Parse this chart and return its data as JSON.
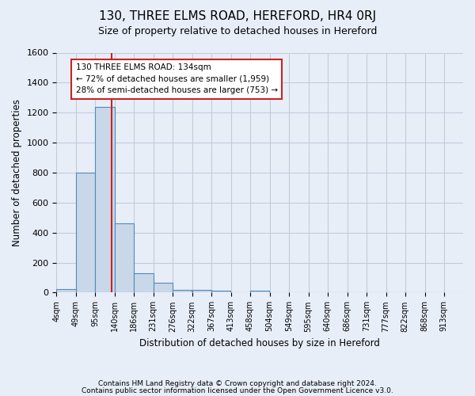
{
  "title": "130, THREE ELMS ROAD, HEREFORD, HR4 0RJ",
  "subtitle": "Size of property relative to detached houses in Hereford",
  "xlabel": "Distribution of detached houses by size in Hereford",
  "ylabel": "Number of detached properties",
  "footnote1": "Contains HM Land Registry data © Crown copyright and database right 2024.",
  "footnote2": "Contains public sector information licensed under the Open Government Licence v3.0.",
  "bar_edges": [
    4,
    49,
    95,
    140,
    186,
    231,
    276,
    322,
    367,
    413,
    458,
    504,
    549,
    595,
    640,
    686,
    731,
    777,
    822,
    868,
    913
  ],
  "bar_heights": [
    25,
    800,
    1240,
    460,
    130,
    65,
    20,
    20,
    15,
    0,
    15,
    0,
    0,
    0,
    0,
    0,
    0,
    0,
    0,
    0
  ],
  "bar_color": "#c8d8e8",
  "bar_edge_color": "#5588bb",
  "grid_color": "#c0ccdd",
  "background_color": "#e8eef8",
  "vline_x": 134,
  "vline_color": "#cc2222",
  "ylim": [
    0,
    1600
  ],
  "annotation_text": "130 THREE ELMS ROAD: 134sqm\n← 72% of detached houses are smaller (1,959)\n28% of semi-detached houses are larger (753) →",
  "annotation_box_color": "white",
  "annotation_box_edge": "#cc2222",
  "tick_labels": [
    "4sqm",
    "49sqm",
    "95sqm",
    "140sqm",
    "186sqm",
    "231sqm",
    "276sqm",
    "322sqm",
    "367sqm",
    "413sqm",
    "458sqm",
    "504sqm",
    "549sqm",
    "595sqm",
    "640sqm",
    "686sqm",
    "731sqm",
    "777sqm",
    "822sqm",
    "868sqm",
    "913sqm"
  ]
}
